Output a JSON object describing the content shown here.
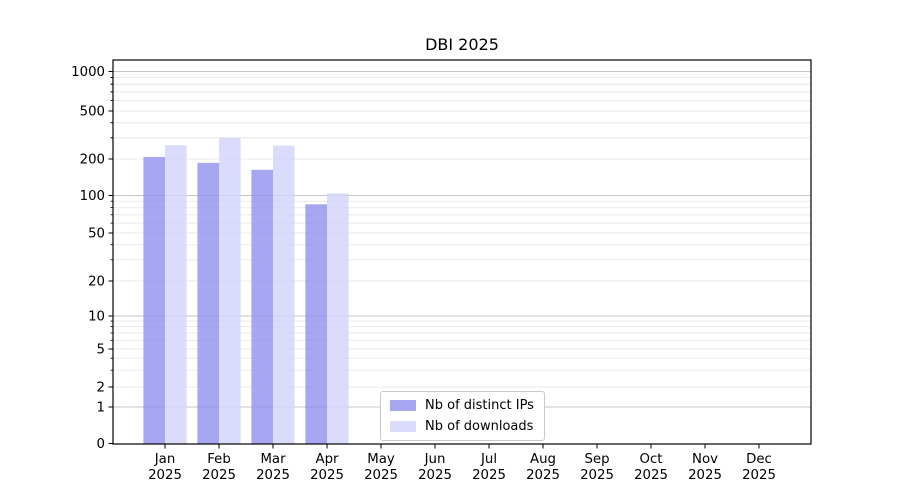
{
  "chart_data": {
    "type": "bar",
    "title": "DBI 2025",
    "categories": [
      "Jan 2025",
      "Feb 2025",
      "Mar 2025",
      "Apr 2025",
      "May 2025",
      "Jun 2025",
      "Jul 2025",
      "Aug 2025",
      "Sep 2025",
      "Oct 2025",
      "Nov 2025",
      "Dec 2025"
    ],
    "series": [
      {
        "name": "Nb of distinct IPs",
        "color": "#9090ee",
        "values": [
          208,
          186,
          163,
          85,
          0,
          0,
          0,
          0,
          0,
          0,
          0,
          0
        ]
      },
      {
        "name": "Nb of downloads",
        "color": "#d2d2fa",
        "values": [
          260,
          300,
          258,
          104,
          0,
          0,
          0,
          0,
          0,
          0,
          0,
          0
        ]
      }
    ],
    "y_ticks": [
      0,
      1,
      2,
      5,
      10,
      20,
      50,
      100,
      200,
      500,
      1000
    ],
    "y_scale": "symlog",
    "ylim": [
      0,
      1000
    ],
    "xlabel": "",
    "ylabel": "",
    "grid": "horizontal major and minor gridlines",
    "legend_position": "lower center",
    "colors": {
      "major_grid": "#c6c6c6",
      "minor_grid": "#ebebeb",
      "axis": "#000000",
      "text": "#000000"
    }
  }
}
